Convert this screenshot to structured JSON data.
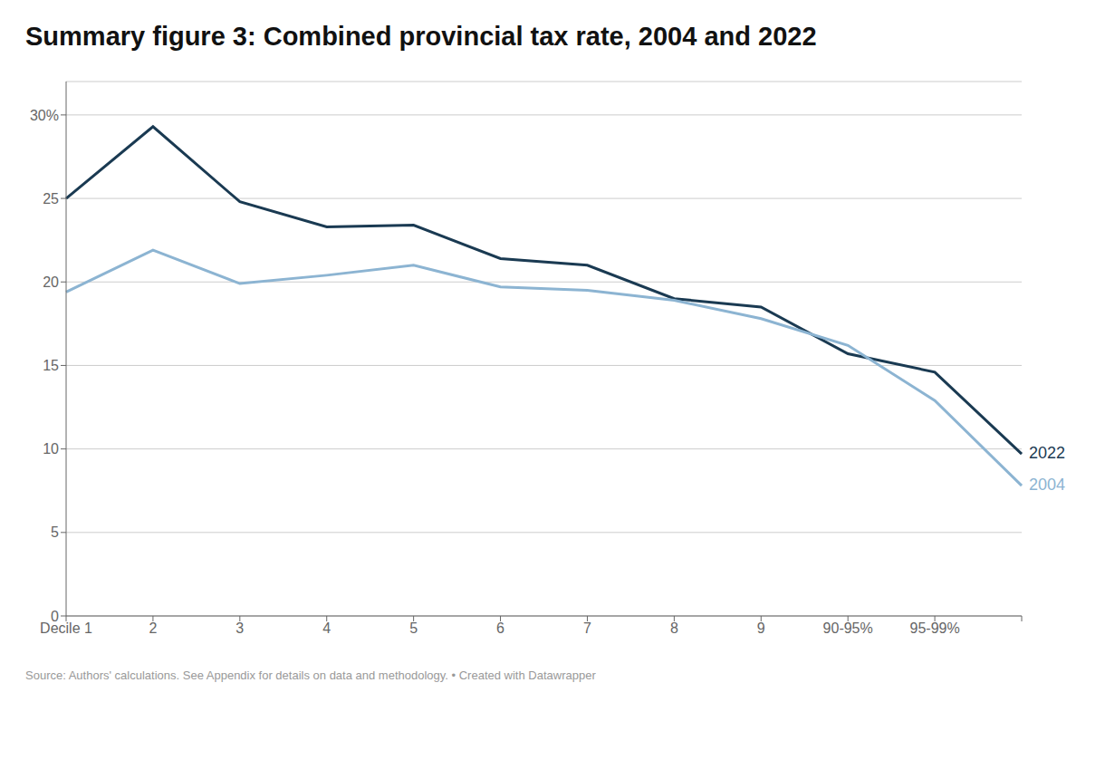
{
  "chart_data": {
    "type": "line",
    "title": "Summary figure 3: Combined provincial tax rate, 2004 and 2022",
    "annotations": [
      "Source: Authors' calculations. See Appendix for details on data and methodology.  •  Created with Datawrapper"
    ],
    "categories": [
      "Decile 1",
      "2",
      "3",
      "4",
      "5",
      "6",
      "7",
      "8",
      "9",
      "90-95%",
      "95-99%",
      null
    ],
    "series": [
      {
        "name": "2022",
        "color": "#1a3a52",
        "values": [
          25.0,
          29.3,
          24.8,
          23.3,
          23.4,
          21.4,
          21.0,
          19.0,
          18.5,
          15.7,
          14.6,
          9.7
        ]
      },
      {
        "name": "2004",
        "color": "#8cb4d2",
        "values": [
          19.4,
          21.9,
          19.9,
          20.4,
          21.0,
          19.7,
          19.5,
          18.9,
          17.8,
          16.2,
          12.9,
          7.8
        ]
      }
    ],
    "ylim": [
      0,
      32
    ],
    "yticks": [
      0,
      5,
      10,
      15,
      20,
      25,
      {
        "value": 30,
        "label": "30%"
      }
    ],
    "grid": true
  }
}
